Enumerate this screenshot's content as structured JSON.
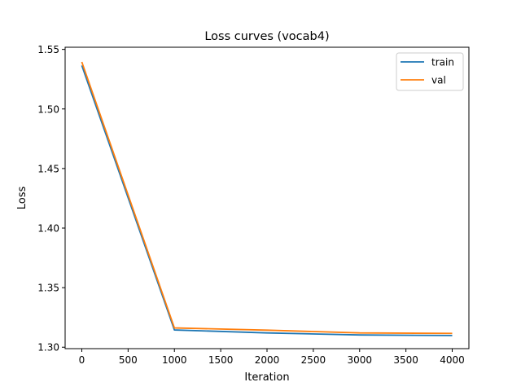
{
  "chart_data": {
    "type": "line",
    "title": "Loss curves (vocab4)",
    "xlabel": "Iteration",
    "ylabel": "Loss",
    "xlim": [
      -180,
      4180
    ],
    "ylim": [
      1.2988,
      1.5518
    ],
    "xticks": [
      0,
      500,
      1000,
      1500,
      2000,
      2500,
      3000,
      3500,
      4000
    ],
    "yticks": [
      1.3,
      1.35,
      1.4,
      1.45,
      1.5,
      1.55
    ],
    "ytick_labels": [
      "1.30",
      "1.35",
      "1.40",
      "1.45",
      "1.50",
      "1.55"
    ],
    "grid": false,
    "legend_position": "top-right",
    "series": [
      {
        "name": "train",
        "color": "#1f77b4",
        "x": [
          0,
          1000,
          2000,
          3000,
          4000
        ],
        "y": [
          1.5365,
          1.3145,
          1.312,
          1.3103,
          1.3098
        ]
      },
      {
        "name": "val",
        "color": "#ff7f0e",
        "x": [
          0,
          1000,
          2000,
          3000,
          4000
        ],
        "y": [
          1.5395,
          1.3162,
          1.3143,
          1.312,
          1.3116
        ]
      }
    ]
  }
}
